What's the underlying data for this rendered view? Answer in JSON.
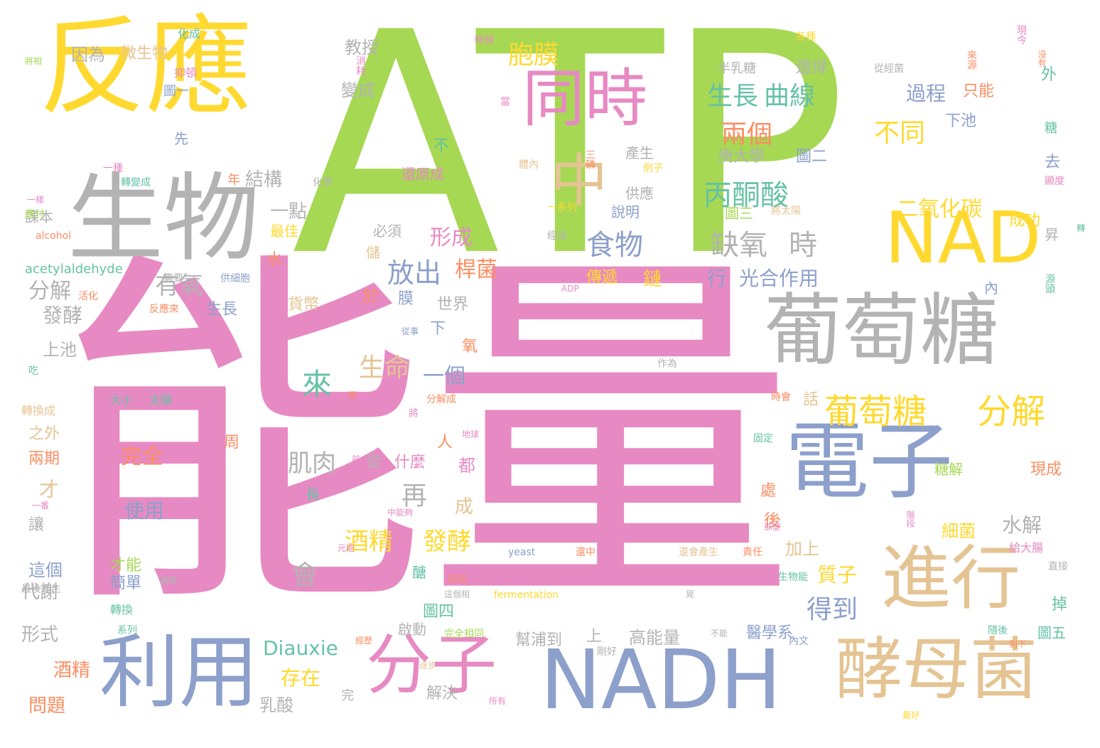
{
  "palette": {
    "green": "#a6d854",
    "pink": "#e78ac3",
    "yellow": "#ffd92f",
    "gray": "#b3b3b3",
    "blue": "#8da0cb",
    "tan": "#e5c494",
    "orange": "#fc8d62",
    "teal": "#66c2a5"
  },
  "words": [
    {
      "text": "ATP",
      "color": "green"
    },
    {
      "text": "能量",
      "color": "pink"
    },
    {
      "text": "反應",
      "color": "yellow"
    },
    {
      "text": "生物",
      "color": "gray"
    },
    {
      "text": "葡萄糖",
      "color": "gray"
    },
    {
      "text": "電子",
      "color": "blue"
    },
    {
      "text": "NADH",
      "color": "blue"
    },
    {
      "text": "利用",
      "color": "blue"
    },
    {
      "text": "進行",
      "color": "tan"
    },
    {
      "text": "酵母菌",
      "color": "tan"
    },
    {
      "text": "同時",
      "color": "pink"
    },
    {
      "text": "分子",
      "color": "pink"
    },
    {
      "text": "NAD",
      "color": "yellow"
    },
    {
      "text": "中",
      "color": "tan"
    },
    {
      "text": "葡萄糖",
      "color": "yellow"
    },
    {
      "text": "分解",
      "color": "yellow"
    },
    {
      "text": "丙酮酸",
      "color": "teal"
    },
    {
      "text": "食物",
      "color": "blue"
    },
    {
      "text": "缺氧",
      "color": "gray"
    },
    {
      "text": "時",
      "color": "gray"
    },
    {
      "text": "生長",
      "color": "teal"
    },
    {
      "text": "曲線",
      "color": "teal"
    },
    {
      "text": "兩個",
      "color": "orange"
    },
    {
      "text": "不同",
      "color": "yellow"
    },
    {
      "text": "胞膜",
      "color": "yellow"
    },
    {
      "text": "放出",
      "color": "blue"
    },
    {
      "text": "來",
      "color": "teal"
    },
    {
      "text": "生命",
      "color": "tan"
    },
    {
      "text": "酒精",
      "color": "yellow"
    },
    {
      "text": "發酵",
      "color": "yellow"
    },
    {
      "text": "有氧",
      "color": "gray"
    },
    {
      "text": "肌肉",
      "color": "gray"
    },
    {
      "text": "再",
      "color": "gray"
    },
    {
      "text": "會",
      "color": "gray"
    },
    {
      "text": "得到",
      "color": "blue"
    },
    {
      "text": "二氧化碳",
      "color": "yellow"
    },
    {
      "text": "過程",
      "color": "blue"
    },
    {
      "text": "只能",
      "color": "orange"
    },
    {
      "text": "一個",
      "color": "blue"
    },
    {
      "text": "結構",
      "color": "gray"
    },
    {
      "text": "一點",
      "color": "gray"
    },
    {
      "text": "形成",
      "color": "pink"
    },
    {
      "text": "桿菌",
      "color": "orange"
    },
    {
      "text": "教授",
      "color": "gray"
    },
    {
      "text": "變成",
      "color": "gray"
    },
    {
      "text": "還得",
      "color": "gray"
    },
    {
      "text": "半乳糖",
      "color": "gray"
    },
    {
      "text": "因為",
      "color": "gray"
    },
    {
      "text": "微生物",
      "color": "tan"
    },
    {
      "text": "庚大學",
      "color": "gray"
    },
    {
      "text": "圖二",
      "color": "blue"
    },
    {
      "text": "產生",
      "color": "gray"
    },
    {
      "text": "供應",
      "color": "gray"
    },
    {
      "text": "說明",
      "color": "blue"
    },
    {
      "text": "傳遞",
      "color": "yellow"
    },
    {
      "text": "鏈",
      "color": "yellow"
    },
    {
      "text": "行",
      "color": "blue"
    },
    {
      "text": "光合作用",
      "color": "blue"
    },
    {
      "text": "成功",
      "color": "yellow"
    },
    {
      "text": "水解",
      "color": "gray"
    },
    {
      "text": "細菌",
      "color": "yellow"
    },
    {
      "text": "現成",
      "color": "orange"
    },
    {
      "text": "加上",
      "color": "tan"
    },
    {
      "text": "質子",
      "color": "yellow"
    },
    {
      "text": "完全",
      "color": "orange"
    },
    {
      "text": "使用",
      "color": "blue"
    },
    {
      "text": "Diauxie",
      "color": "teal"
    },
    {
      "text": "存在",
      "color": "yellow"
    },
    {
      "text": "乳酸",
      "color": "gray"
    },
    {
      "text": "解決",
      "color": "gray"
    },
    {
      "text": "高能量",
      "color": "gray"
    },
    {
      "text": "醫學系",
      "color": "blue"
    },
    {
      "text": "幫浦到",
      "color": "gray"
    },
    {
      "text": "上",
      "color": "gray"
    },
    {
      "text": "分解",
      "color": "gray"
    },
    {
      "text": "發酵",
      "color": "gray"
    },
    {
      "text": "上池",
      "color": "gray"
    },
    {
      "text": "貨幣",
      "color": "tan"
    },
    {
      "text": "世界",
      "color": "gray"
    },
    {
      "text": "必須",
      "color": "gray"
    },
    {
      "text": "最佳",
      "color": "yellow"
    },
    {
      "text": "水",
      "color": "orange"
    },
    {
      "text": "生長",
      "color": "blue"
    },
    {
      "text": "課本",
      "color": "gray"
    },
    {
      "text": "acetylaldehyde",
      "color": "teal"
    },
    {
      "text": "alcohol",
      "color": "orange"
    },
    {
      "text": "酒精",
      "color": "orange"
    },
    {
      "text": "問題",
      "color": "orange"
    },
    {
      "text": "形式",
      "color": "gray"
    },
    {
      "text": "代謝",
      "color": "gray"
    },
    {
      "text": "這個",
      "color": "blue"
    },
    {
      "text": "讓",
      "color": "gray"
    },
    {
      "text": "兩期",
      "color": "orange"
    },
    {
      "text": "之外",
      "color": "tan"
    },
    {
      "text": "才",
      "color": "tan"
    },
    {
      "text": "大小",
      "color": "teal"
    },
    {
      "text": "太陽",
      "color": "teal"
    },
    {
      "text": "什麼",
      "color": "pink"
    },
    {
      "text": "從",
      "color": "gray"
    },
    {
      "text": "簡單",
      "color": "blue"
    },
    {
      "text": "才能",
      "color": "green"
    },
    {
      "text": "圖四",
      "color": "teal"
    },
    {
      "text": "糖解",
      "color": "green"
    },
    {
      "text": "掉",
      "color": "teal"
    },
    {
      "text": "圖五",
      "color": "teal"
    },
    {
      "text": "圖一",
      "color": "blue"
    },
    {
      "text": "先",
      "color": "blue"
    },
    {
      "text": "化成",
      "color": "teal"
    },
    {
      "text": "抑頓",
      "color": "pink"
    },
    {
      "text": "還原成",
      "color": "pink"
    },
    {
      "text": "不",
      "color": "teal"
    },
    {
      "text": "時候",
      "color": "pink"
    },
    {
      "text": "各種",
      "color": "yellow"
    },
    {
      "text": "從經菌",
      "color": "gray"
    },
    {
      "text": "現今",
      "color": "pink"
    },
    {
      "text": "下池",
      "color": "blue"
    },
    {
      "text": "外",
      "color": "teal"
    },
    {
      "text": "糖",
      "color": "teal"
    },
    {
      "text": "去",
      "color": "blue"
    },
    {
      "text": "昇",
      "color": "gray"
    },
    {
      "text": "源頭",
      "color": "teal"
    },
    {
      "text": "內",
      "color": "blue"
    },
    {
      "text": "給大腸",
      "color": "pink"
    },
    {
      "text": "直接",
      "color": "gray"
    },
    {
      "text": "人",
      "color": "orange"
    },
    {
      "text": "都",
      "color": "pink"
    },
    {
      "text": "成",
      "color": "tan"
    },
    {
      "text": "後",
      "color": "orange"
    },
    {
      "text": "處",
      "color": "orange"
    },
    {
      "text": "話",
      "color": "tan"
    },
    {
      "text": "氧",
      "color": "orange"
    },
    {
      "text": "下",
      "color": "blue"
    },
    {
      "text": "於",
      "color": "orange"
    },
    {
      "text": "膜",
      "color": "blue"
    },
    {
      "text": "儲",
      "color": "tan"
    },
    {
      "text": "周",
      "color": "orange"
    },
    {
      "text": "長",
      "color": "teal"
    },
    {
      "text": "醣",
      "color": "teal"
    },
    {
      "text": "一系列",
      "color": "yellow"
    },
    {
      "text": "圖三",
      "color": "green"
    },
    {
      "text": "將太陽",
      "color": "tan"
    },
    {
      "text": "ADP",
      "color": "pink"
    },
    {
      "text": "yeast",
      "color": "blue"
    },
    {
      "text": "fermentation",
      "color": "yellow"
    },
    {
      "text": "完全相同",
      "color": "green"
    },
    {
      "text": "啟動",
      "color": "gray"
    },
    {
      "text": "完",
      "color": "gray"
    },
    {
      "text": "所有",
      "color": "pink"
    },
    {
      "text": "作為",
      "color": "gray"
    },
    {
      "text": "時會",
      "color": "orange"
    },
    {
      "text": "還會產生",
      "color": "tan"
    },
    {
      "text": "責任",
      "color": "orange"
    },
    {
      "text": "生物能",
      "color": "teal"
    },
    {
      "text": "隨後",
      "color": "teal"
    },
    {
      "text": "不能",
      "color": "gray"
    },
    {
      "text": "內文",
      "color": "blue"
    },
    {
      "text": "最好",
      "color": "yellow"
    },
    {
      "text": "轉換",
      "color": "teal"
    },
    {
      "text": "系列",
      "color": "teal"
    },
    {
      "text": "最後產生",
      "color": "gray"
    },
    {
      "text": "轉換成",
      "color": "tan"
    },
    {
      "text": "一種",
      "color": "pink"
    },
    {
      "text": "轉變成",
      "color": "teal"
    },
    {
      "text": "化學",
      "color": "gray"
    },
    {
      "text": "年",
      "color": "orange"
    },
    {
      "text": "反應來",
      "color": "orange"
    },
    {
      "text": "活化",
      "color": "orange"
    },
    {
      "text": "供細胞",
      "color": "blue"
    },
    {
      "text": "需要",
      "color": "gray"
    },
    {
      "text": "經過",
      "color": "gray"
    },
    {
      "text": "例子",
      "color": "yellow"
    },
    {
      "text": "三磷",
      "color": "orange"
    },
    {
      "text": "體內",
      "color": "tan"
    },
    {
      "text": "當",
      "color": "pink"
    },
    {
      "text": "消耗",
      "color": "pink"
    },
    {
      "text": "將相",
      "color": "green"
    },
    {
      "text": "從事",
      "color": "blue"
    },
    {
      "text": "地球",
      "color": "pink"
    },
    {
      "text": "類",
      "color": "orange"
    },
    {
      "text": "將",
      "color": "pink"
    },
    {
      "text": "分解成",
      "color": "orange"
    },
    {
      "text": "中能夠",
      "color": "pink"
    },
    {
      "text": "元能",
      "color": "pink"
    },
    {
      "text": "編輯",
      "color": "gray"
    },
    {
      "text": "往往",
      "color": "orange"
    },
    {
      "text": "這個相",
      "color": "gray"
    },
    {
      "text": "經歷",
      "color": "orange"
    },
    {
      "text": "逐步",
      "color": "tan"
    },
    {
      "text": "剛好",
      "color": "gray"
    },
    {
      "text": "前",
      "color": "pink"
    },
    {
      "text": "固定",
      "color": "teal"
    },
    {
      "text": "來源",
      "color": "orange"
    },
    {
      "text": "一樣",
      "color": "pink"
    },
    {
      "text": "沒有",
      "color": "orange"
    },
    {
      "text": "顯度",
      "color": "pink"
    },
    {
      "text": "轉",
      "color": "teal"
    },
    {
      "text": "階段",
      "color": "pink"
    },
    {
      "text": "那麼",
      "color": "pink"
    },
    {
      "text": "還中",
      "color": "orange"
    },
    {
      "text": "剩下",
      "color": "orange"
    },
    {
      "text": "吃",
      "color": "teal"
    },
    {
      "text": "一番",
      "color": "pink"
    },
    {
      "text": "應付",
      "color": "green"
    },
    {
      "text": "晃",
      "color": "gray"
    }
  ]
}
